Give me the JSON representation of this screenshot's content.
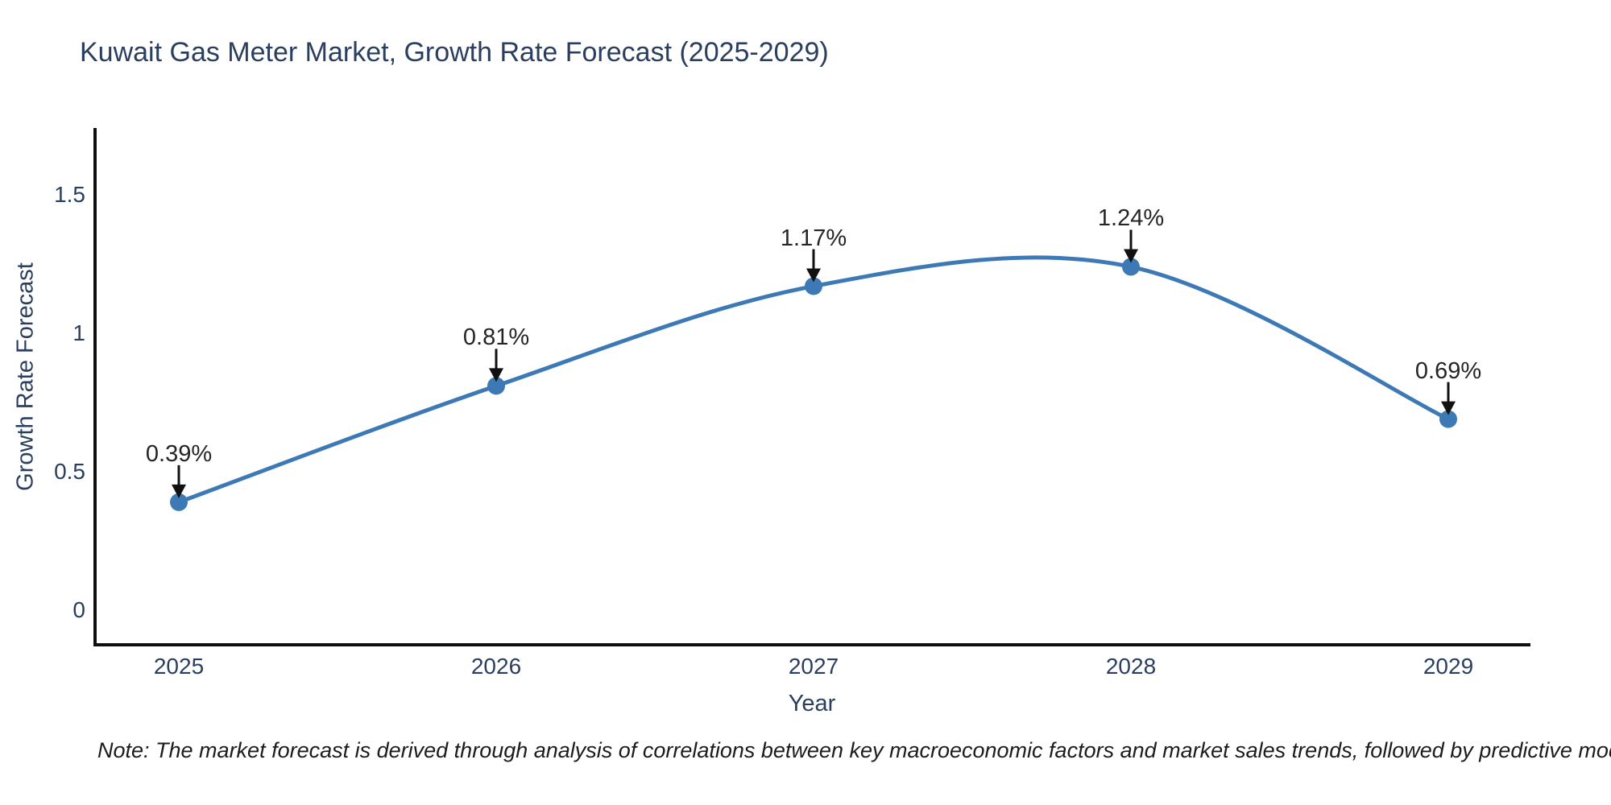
{
  "title": "Kuwait Gas Meter Market, Growth Rate Forecast (2025-2029)",
  "note": "Note: The market forecast is derived through analysis of correlations between key macroeconomic factors and market sales trends, followed by predictive modeling to project future sales",
  "chart_data": {
    "type": "line",
    "title": "Kuwait Gas Meter Market, Growth Rate Forecast (2025-2029)",
    "xlabel": "Year",
    "ylabel": "Growth Rate Forecast",
    "x": [
      "2025",
      "2026",
      "2027",
      "2028",
      "2029"
    ],
    "values": [
      0.39,
      0.81,
      1.17,
      1.24,
      0.69
    ],
    "point_labels": [
      "0.39%",
      "0.81%",
      "1.17%",
      "1.24%",
      "0.69%"
    ],
    "yticks": [
      0,
      0.5,
      1,
      1.5
    ],
    "ylim": [
      -0.13,
      1.74
    ],
    "line_shape": "spline",
    "markers": true,
    "grid": false,
    "legend": "none",
    "colors": {
      "line": "#3d7ab5",
      "marker": "#3d7ab5",
      "axis": "#0f0f0f",
      "label_text": "#2a3f5f",
      "annotation_text": "#252525",
      "arrow": "#111111",
      "background": "#ffffff"
    }
  }
}
